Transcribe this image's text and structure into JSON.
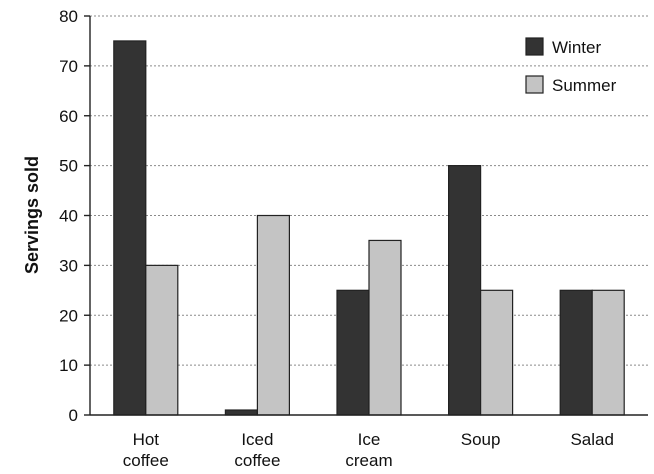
{
  "chart_data": {
    "type": "bar",
    "ylabel": "Servings sold",
    "xlabel": "",
    "ylim": [
      0,
      80
    ],
    "yticks": [
      0,
      10,
      20,
      30,
      40,
      50,
      60,
      70,
      80
    ],
    "grid": true,
    "legend_position": "top-right",
    "categories": [
      [
        "Hot",
        "coffee"
      ],
      [
        "Iced",
        "coffee"
      ],
      [
        "Ice",
        "cream"
      ],
      [
        "Soup"
      ],
      [
        "Salad"
      ]
    ],
    "series": [
      {
        "name": "Winter",
        "color": "#333333",
        "values": [
          75,
          1,
          25,
          50,
          25
        ]
      },
      {
        "name": "Summer",
        "color": "#c4c4c4",
        "values": [
          30,
          40,
          35,
          25,
          25
        ]
      }
    ]
  }
}
